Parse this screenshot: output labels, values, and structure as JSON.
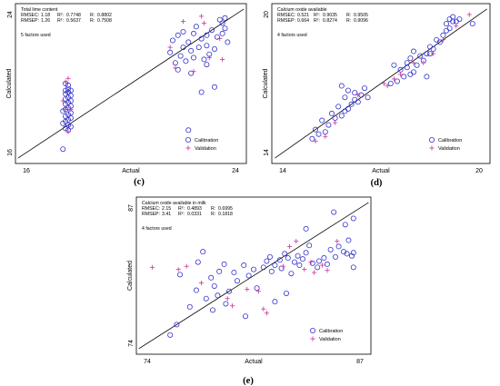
{
  "chart_data": [
    {
      "type": "scatter",
      "panel_label": "(c)",
      "info_title": "Total lime content",
      "stats": [
        {
          "name": "RMSEC:",
          "rmse": "1.18",
          "r2_label": "R²:",
          "r2": "0.7748",
          "r_label": "R:",
          "r": "0.8802"
        },
        {
          "name": "RMSEP:",
          "rmse": "1.26",
          "r2_label": "R²:",
          "r2": "0.5637",
          "r_label": "R:",
          "r": "0.7508"
        }
      ],
      "factors_text": "5 factors used",
      "xlabel": "Actual",
      "ylabel": "Calculated",
      "xlim": [
        16,
        24
      ],
      "ylim": [
        16,
        24
      ],
      "x_ticks": [
        "16",
        "24"
      ],
      "y_ticks": [
        "16",
        "24"
      ],
      "legend": [
        "Calibration",
        "Validation"
      ],
      "legend_position": "bottom-right",
      "series": [
        {
          "name": "Calibration",
          "marker": "circle",
          "color": "#3333cc",
          "points": [
            [
              17.6,
              19.7
            ],
            [
              17.5,
              19.6
            ],
            [
              17.7,
              19.6
            ],
            [
              17.6,
              19.5
            ],
            [
              17.5,
              19.4
            ],
            [
              17.7,
              19.3
            ],
            [
              17.6,
              19.2
            ],
            [
              17.5,
              19.1
            ],
            [
              17.7,
              19.0
            ],
            [
              17.6,
              18.9
            ],
            [
              17.5,
              18.8
            ],
            [
              17.7,
              18.7
            ],
            [
              17.6,
              18.6
            ],
            [
              17.5,
              18.5
            ],
            [
              17.4,
              18.4
            ],
            [
              17.7,
              18.3
            ],
            [
              17.6,
              18.2
            ],
            [
              17.5,
              18.1
            ],
            [
              17.7,
              18.0
            ],
            [
              17.6,
              17.9
            ],
            [
              17.5,
              17.8
            ],
            [
              17.4,
              17.7
            ],
            [
              17.6,
              17.6
            ],
            [
              17.7,
              17.5
            ],
            [
              17.5,
              17.4
            ],
            [
              17.6,
              17.3
            ],
            [
              17.4,
              16.2
            ],
            [
              17.6,
              19.9
            ],
            [
              17.5,
              20.0
            ],
            [
              21.6,
              22.5
            ],
            [
              21.8,
              22.8
            ],
            [
              22.0,
              23.0
            ],
            [
              22.2,
              22.4
            ],
            [
              22.4,
              22.9
            ],
            [
              22.5,
              23.3
            ],
            [
              22.7,
              22.6
            ],
            [
              22.9,
              22.2
            ],
            [
              23.1,
              23.1
            ],
            [
              23.3,
              22.7
            ],
            [
              23.5,
              23.5
            ],
            [
              23.7,
              22.4
            ],
            [
              21.5,
              21.8
            ],
            [
              21.9,
              21.6
            ],
            [
              22.3,
              21.9
            ],
            [
              22.6,
              22.1
            ],
            [
              22.8,
              21.4
            ],
            [
              23.0,
              21.7
            ],
            [
              23.2,
              22.0
            ],
            [
              21.7,
              21.2
            ],
            [
              22.1,
              21.3
            ],
            [
              22.4,
              21.5
            ],
            [
              23.4,
              23.7
            ],
            [
              23.6,
              23.8
            ],
            [
              23.6,
              23.2
            ],
            [
              22.0,
              22.1
            ],
            [
              22.9,
              22.8
            ],
            [
              21.8,
              20.8
            ],
            [
              22.3,
              20.6
            ],
            [
              22.9,
              21.1
            ],
            [
              22.2,
              17.3
            ],
            [
              23.2,
              19.8
            ],
            [
              22.7,
              19.5
            ],
            [
              23.5,
              22.9
            ]
          ]
        },
        {
          "name": "Validation",
          "marker": "plus",
          "color": "#cc3399",
          "points": [
            [
              17.6,
              20.3
            ],
            [
              17.5,
              18.6
            ],
            [
              17.7,
              18.5
            ],
            [
              17.6,
              17.2
            ],
            [
              17.5,
              20.1
            ],
            [
              17.4,
              19.0
            ],
            [
              21.5,
              22.1
            ],
            [
              22.0,
              23.6
            ],
            [
              22.4,
              20.7
            ],
            [
              22.8,
              23.5
            ],
            [
              23.0,
              21.5
            ],
            [
              23.4,
              22.6
            ],
            [
              21.7,
              20.9
            ],
            [
              23.5,
              21.4
            ],
            [
              22.7,
              23.9
            ]
          ]
        }
      ]
    },
    {
      "type": "scatter",
      "panel_label": "(d)",
      "info_title": "Calcium oxide available",
      "stats": [
        {
          "name": "RMSEC:",
          "rmse": "0.521",
          "r2_label": "R²:",
          "r2": "0.9035",
          "r_label": "R:",
          "r": "0.9505"
        },
        {
          "name": "RMSEP:",
          "rmse": "0.664",
          "r2_label": "R²:",
          "r2": "0.8274",
          "r_label": "R:",
          "r": "0.9096"
        }
      ],
      "factors_text": "4 factors used",
      "xlabel": "Actual",
      "ylabel": "Calculated",
      "xlim": [
        14,
        20
      ],
      "ylim": [
        14,
        20
      ],
      "x_ticks": [
        "14",
        "20"
      ],
      "y_ticks": [
        "14",
        "20"
      ],
      "legend": [
        "Calibration",
        "Validation"
      ],
      "legend_position": "bottom-right",
      "series": [
        {
          "name": "Calibration",
          "marker": "circle",
          "color": "#3333cc",
          "points": [
            [
              14.9,
              14.6
            ],
            [
              15.1,
              14.8
            ],
            [
              15.3,
              14.9
            ],
            [
              15.0,
              15.0
            ],
            [
              15.4,
              15.2
            ],
            [
              15.2,
              15.4
            ],
            [
              15.6,
              15.5
            ],
            [
              15.8,
              15.6
            ],
            [
              15.5,
              15.7
            ],
            [
              15.9,
              15.8
            ],
            [
              16.0,
              15.9
            ],
            [
              15.7,
              16.0
            ],
            [
              16.1,
              16.1
            ],
            [
              16.3,
              16.2
            ],
            [
              16.2,
              16.3
            ],
            [
              15.9,
              16.4
            ],
            [
              16.4,
              16.5
            ],
            [
              16.6,
              16.4
            ],
            [
              16.2,
              16.6
            ],
            [
              16.0,
              16.7
            ],
            [
              16.5,
              16.8
            ],
            [
              15.8,
              16.9
            ],
            [
              17.3,
              17.0
            ],
            [
              17.5,
              17.1
            ],
            [
              17.7,
              17.3
            ],
            [
              17.9,
              17.4
            ],
            [
              18.0,
              17.5
            ],
            [
              17.6,
              17.6
            ],
            [
              17.8,
              17.7
            ],
            [
              18.1,
              17.8
            ],
            [
              17.4,
              17.8
            ],
            [
              18.3,
              18.0
            ],
            [
              17.9,
              18.1
            ],
            [
              18.2,
              18.2
            ],
            [
              18.4,
              18.3
            ],
            [
              18.0,
              18.4
            ],
            [
              18.6,
              18.5
            ],
            [
              18.5,
              18.6
            ],
            [
              18.8,
              18.8
            ],
            [
              18.7,
              18.9
            ],
            [
              18.9,
              19.1
            ],
            [
              19.0,
              19.3
            ],
            [
              19.1,
              19.4
            ],
            [
              19.0,
              19.6
            ],
            [
              19.2,
              19.7
            ],
            [
              19.1,
              19.8
            ],
            [
              19.3,
              19.7
            ],
            [
              19.2,
              19.9
            ],
            [
              19.4,
              19.8
            ],
            [
              19.8,
              19.6
            ],
            [
              18.4,
              17.3
            ],
            [
              17.8,
              17.9
            ],
            [
              18.5,
              18.3
            ]
          ]
        },
        {
          "name": "Validation",
          "marker": "plus",
          "color": "#cc3399",
          "points": [
            [
              15.0,
              14.5
            ],
            [
              15.3,
              14.7
            ],
            [
              15.6,
              15.3
            ],
            [
              16.3,
              16.5
            ],
            [
              17.1,
              17.0
            ],
            [
              17.4,
              17.2
            ],
            [
              17.6,
              17.4
            ],
            [
              18.0,
              17.9
            ],
            [
              18.3,
              17.9
            ],
            [
              18.6,
              18.3
            ],
            [
              18.9,
              18.9
            ],
            [
              19.3,
              19.5
            ],
            [
              19.7,
              20.0
            ],
            [
              17.2,
              16.9
            ]
          ]
        }
      ]
    },
    {
      "type": "scatter",
      "panel_label": "(e)",
      "info_title": "Calcium oxide available in milk",
      "stats": [
        {
          "name": "RMSEC:",
          "rmse": "2.15",
          "r2_label": "R²:",
          "r2": "0.4893",
          "r_label": "R:",
          "r": "0.6995"
        },
        {
          "name": "RMSEP:",
          "rmse": "3.41",
          "r2_label": "R²:",
          "r2": "0.0331",
          "r_label": "R:",
          "r": "0.1818"
        }
      ],
      "factors_text": "4 factors used",
      "xlabel": "Actual",
      "ylabel": "Calculated",
      "xlim": [
        74,
        87
      ],
      "ylim": [
        74,
        87
      ],
      "x_ticks": [
        "74",
        "87"
      ],
      "y_ticks": [
        "74",
        "87"
      ],
      "legend": [
        "Calibration",
        "Validation"
      ],
      "legend_position": "bottom-right",
      "series": [
        {
          "name": "Calibration",
          "marker": "circle",
          "color": "#3333cc",
          "points": [
            [
              75.4,
              74.8
            ],
            [
              75.8,
              75.8
            ],
            [
              76.0,
              80.6
            ],
            [
              77.1,
              81.8
            ],
            [
              77.0,
              79.1
            ],
            [
              77.6,
              78.3
            ],
            [
              78.0,
              77.2
            ],
            [
              77.9,
              80.3
            ],
            [
              78.4,
              80.9
            ],
            [
              78.7,
              81.6
            ],
            [
              78.1,
              79.5
            ],
            [
              78.3,
              78.6
            ],
            [
              78.8,
              77.8
            ],
            [
              79.5,
              80.0
            ],
            [
              79.3,
              80.8
            ],
            [
              79.9,
              81.5
            ],
            [
              80.5,
              81.1
            ],
            [
              80.2,
              80.5
            ],
            [
              81.1,
              81.3
            ],
            [
              81.3,
              81.9
            ],
            [
              81.5,
              82.3
            ],
            [
              81.6,
              80.9
            ],
            [
              81.8,
              81.5
            ],
            [
              82.1,
              82.0
            ],
            [
              82.4,
              82.6
            ],
            [
              82.6,
              82.2
            ],
            [
              82.2,
              81.2
            ],
            [
              82.8,
              80.7
            ],
            [
              83.0,
              81.8
            ],
            [
              83.2,
              82.4
            ],
            [
              83.3,
              81.5
            ],
            [
              83.5,
              82.1
            ],
            [
              83.7,
              82.7
            ],
            [
              83.9,
              83.4
            ],
            [
              84.1,
              81.7
            ],
            [
              84.4,
              81.3
            ],
            [
              84.5,
              81.9
            ],
            [
              84.8,
              82.2
            ],
            [
              85.0,
              81.6
            ],
            [
              85.2,
              83.0
            ],
            [
              85.5,
              82.3
            ],
            [
              85.7,
              83.3
            ],
            [
              86.0,
              82.8
            ],
            [
              86.2,
              82.6
            ],
            [
              86.3,
              83.9
            ],
            [
              86.5,
              82.4
            ],
            [
              86.6,
              82.7
            ],
            [
              86.1,
              85.4
            ],
            [
              83.7,
              85.0
            ],
            [
              85.4,
              86.6
            ],
            [
              86.6,
              86.0
            ],
            [
              81.8,
              78.0
            ],
            [
              82.5,
              78.8
            ],
            [
              80.7,
              79.3
            ],
            [
              79.0,
              79.0
            ],
            [
              77.4,
              82.8
            ],
            [
              76.6,
              77.5
            ],
            [
              80.0,
              76.6
            ],
            [
              86.6,
              81.3
            ]
          ]
        },
        {
          "name": "Validation",
          "marker": "plus",
          "color": "#cc3399",
          "points": [
            [
              74.3,
              81.3
            ],
            [
              75.9,
              81.1
            ],
            [
              76.4,
              81.4
            ],
            [
              77.3,
              79.8
            ],
            [
              78.9,
              78.3
            ],
            [
              79.2,
              77.6
            ],
            [
              80.1,
              79.2
            ],
            [
              80.8,
              79.0
            ],
            [
              81.1,
              77.3
            ],
            [
              81.3,
              76.9
            ],
            [
              82.3,
              81.4
            ],
            [
              82.7,
              83.3
            ],
            [
              83.1,
              83.8
            ],
            [
              83.6,
              81.1
            ],
            [
              84.0,
              81.8
            ],
            [
              84.2,
              80.8
            ],
            [
              84.7,
              81.5
            ],
            [
              85.0,
              81.0
            ],
            [
              85.6,
              83.8
            ]
          ]
        }
      ]
    }
  ]
}
